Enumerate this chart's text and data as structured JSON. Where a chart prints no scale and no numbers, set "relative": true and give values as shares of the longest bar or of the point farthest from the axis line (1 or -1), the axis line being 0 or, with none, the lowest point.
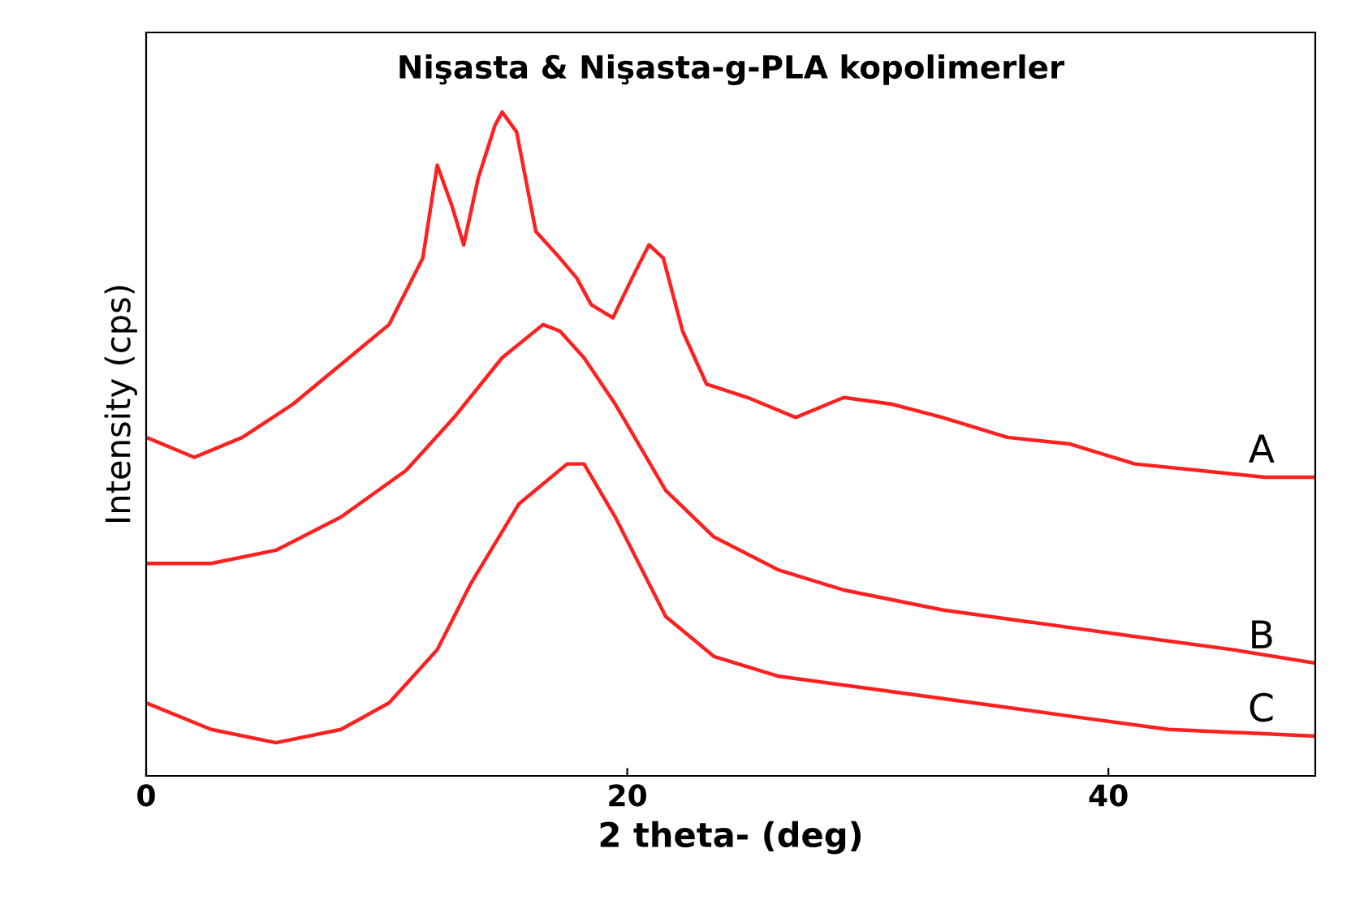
{
  "chart_data": {
    "type": "line",
    "title": "Nişasta & Nişasta-g-PLA kopolimerler",
    "xlabel": "2 theta- (deg)",
    "ylabel": "Intensity (cps)",
    "relative": true,
    "xlim": [
      0,
      48.6
    ],
    "xticks": [
      0,
      20,
      40
    ],
    "grid": false,
    "legend": false,
    "marker": "none",
    "line_style": "solid",
    "series": [
      {
        "name": "A",
        "color": "#ff2020",
        "x": [
          0,
          2.0,
          4.0,
          6.1,
          8.1,
          10.1,
          11.5,
          12.1,
          12.7,
          13.2,
          13.8,
          14.5,
          14.8,
          15.4,
          16.2,
          17.2,
          17.9,
          18.5,
          19.4,
          20.2,
          20.9,
          21.5,
          22.3,
          23.3,
          25.0,
          27.0,
          29.0,
          31.0,
          33.1,
          35.8,
          38.4,
          41.1,
          43.8,
          46.5,
          48.6
        ],
        "values": [
          0.51,
          0.48,
          0.51,
          0.56,
          0.62,
          0.68,
          0.78,
          0.92,
          0.86,
          0.8,
          0.9,
          0.98,
          1.0,
          0.97,
          0.82,
          0.78,
          0.75,
          0.71,
          0.69,
          0.75,
          0.8,
          0.78,
          0.67,
          0.59,
          0.57,
          0.54,
          0.57,
          0.56,
          0.54,
          0.51,
          0.5,
          0.47,
          0.46,
          0.45,
          0.45
        ]
      },
      {
        "name": "B",
        "color": "#ff2020",
        "x": [
          0,
          2.7,
          5.4,
          8.1,
          10.8,
          12.8,
          14.8,
          16.5,
          17.2,
          18.2,
          19.5,
          21.6,
          23.6,
          26.3,
          29.0,
          33.1,
          37.1,
          41.1,
          45.2,
          48.6
        ],
        "values": [
          0.32,
          0.32,
          0.34,
          0.39,
          0.46,
          0.54,
          0.63,
          0.68,
          0.67,
          0.63,
          0.56,
          0.43,
          0.36,
          0.31,
          0.28,
          0.25,
          0.23,
          0.21,
          0.19,
          0.17
        ]
      },
      {
        "name": "C",
        "color": "#ff2020",
        "x": [
          0,
          2.7,
          5.4,
          8.1,
          10.1,
          12.1,
          13.5,
          15.5,
          17.5,
          18.2,
          19.5,
          21.6,
          23.6,
          26.3,
          30.4,
          34.4,
          38.4,
          42.5,
          48.6
        ],
        "values": [
          0.11,
          0.07,
          0.05,
          0.07,
          0.11,
          0.19,
          0.29,
          0.41,
          0.47,
          0.47,
          0.39,
          0.24,
          0.18,
          0.15,
          0.13,
          0.11,
          0.09,
          0.07,
          0.06
        ]
      }
    ]
  }
}
